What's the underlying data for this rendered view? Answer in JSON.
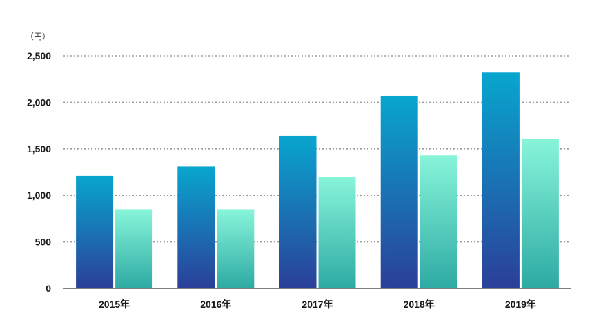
{
  "chart_data": {
    "type": "bar",
    "unit_label": "（円）",
    "categories": [
      "2015年",
      "2016年",
      "2017年",
      "2018年",
      "2019年"
    ],
    "series": [
      {
        "values": [
          1210,
          1310,
          1640,
          2070,
          2320
        ],
        "color_top": "#08A6CF",
        "color_bottom": "#2B3F98"
      },
      {
        "values": [
          850,
          850,
          1200,
          1430,
          1610
        ],
        "color_top": "#88F5DA",
        "color_bottom": "#2DAAA3"
      }
    ],
    "ylim": [
      0,
      2500
    ],
    "yticks": [
      0,
      500,
      1000,
      1500,
      2000,
      2500
    ],
    "ytick_labels": [
      "0",
      "500",
      "1,000",
      "1,500",
      "2,000",
      "2,500"
    ],
    "grid": true,
    "grid_style": "dotted",
    "legend": "none"
  }
}
